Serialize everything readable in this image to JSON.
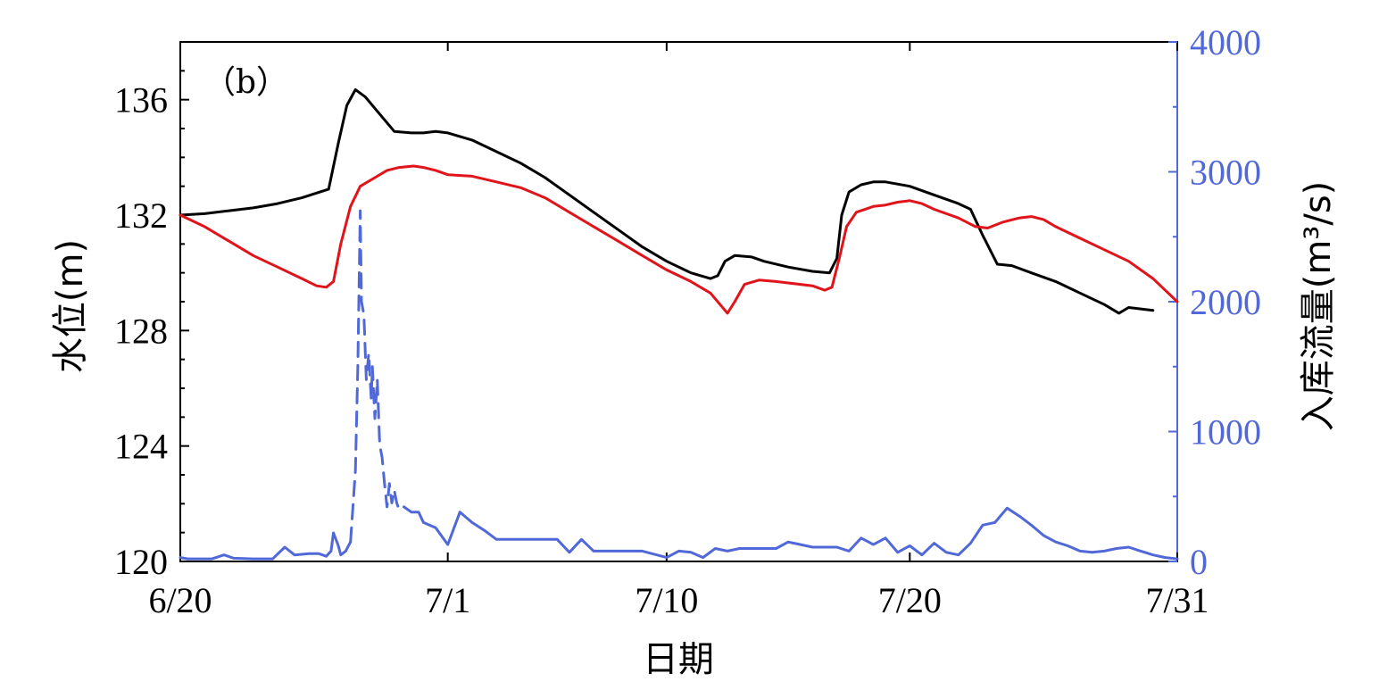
{
  "chart_data": {
    "type": "line",
    "panel_label": "（b）",
    "xlabel": "日期",
    "ylabel_left": "水位(m)",
    "ylabel_right": "入库流量(m³/s)",
    "x_range": [
      0,
      41
    ],
    "x_ticks": [
      {
        "x": 0,
        "label": "6/20"
      },
      {
        "x": 11,
        "label": "7/1"
      },
      {
        "x": 20,
        "label": "7/10"
      },
      {
        "x": 30,
        "label": "7/20"
      },
      {
        "x": 41,
        "label": "7/31"
      }
    ],
    "ylim_left": [
      120,
      138
    ],
    "yticks_left": [
      120,
      124,
      128,
      132,
      136
    ],
    "ylim_right": [
      0,
      4000
    ],
    "yticks_right": [
      0,
      1000,
      2000,
      3000,
      4000
    ],
    "colors": {
      "black": "#000000",
      "red": "#e0141b",
      "blue": "#5068d8"
    },
    "series": [
      {
        "axis": "left",
        "color": "#000000",
        "style": "solid",
        "points": [
          [
            0,
            132.0
          ],
          [
            1,
            132.05
          ],
          [
            2,
            132.15
          ],
          [
            3,
            132.25
          ],
          [
            4,
            132.4
          ],
          [
            5,
            132.6
          ],
          [
            6.1,
            132.9
          ],
          [
            6.5,
            134.5
          ],
          [
            6.85,
            135.8
          ],
          [
            7.2,
            136.35
          ],
          [
            7.6,
            136.1
          ],
          [
            8.2,
            135.5
          ],
          [
            8.8,
            134.9
          ],
          [
            9.5,
            134.85
          ],
          [
            10,
            134.85
          ],
          [
            10.5,
            134.9
          ],
          [
            11,
            134.85
          ],
          [
            12,
            134.6
          ],
          [
            13,
            134.2
          ],
          [
            14,
            133.8
          ],
          [
            15,
            133.3
          ],
          [
            16,
            132.7
          ],
          [
            17,
            132.1
          ],
          [
            18,
            131.5
          ],
          [
            19,
            130.9
          ],
          [
            20,
            130.4
          ],
          [
            21,
            130.0
          ],
          [
            21.8,
            129.8
          ],
          [
            22.1,
            129.9
          ],
          [
            22.4,
            130.4
          ],
          [
            22.8,
            130.6
          ],
          [
            23.5,
            130.55
          ],
          [
            24,
            130.4
          ],
          [
            25,
            130.2
          ],
          [
            26,
            130.05
          ],
          [
            26.7,
            130.0
          ],
          [
            27,
            130.5
          ],
          [
            27.2,
            132.0
          ],
          [
            27.5,
            132.8
          ],
          [
            28,
            133.05
          ],
          [
            28.5,
            133.15
          ],
          [
            29,
            133.15
          ],
          [
            30,
            133.0
          ],
          [
            31,
            132.7
          ],
          [
            32,
            132.4
          ],
          [
            32.5,
            132.2
          ],
          [
            33,
            131.3
          ],
          [
            33.6,
            130.3
          ],
          [
            34.2,
            130.25
          ],
          [
            35,
            130.0
          ],
          [
            36,
            129.7
          ],
          [
            37,
            129.3
          ],
          [
            38,
            128.9
          ],
          [
            38.6,
            128.6
          ],
          [
            39,
            128.8
          ],
          [
            39.5,
            128.75
          ],
          [
            40,
            128.7
          ]
        ]
      },
      {
        "axis": "left",
        "color": "#e0141b",
        "style": "solid",
        "points": [
          [
            0,
            132.0
          ],
          [
            1,
            131.6
          ],
          [
            2,
            131.1
          ],
          [
            3,
            130.6
          ],
          [
            4,
            130.2
          ],
          [
            5,
            129.8
          ],
          [
            5.6,
            129.55
          ],
          [
            6,
            129.5
          ],
          [
            6.3,
            129.7
          ],
          [
            6.6,
            131.0
          ],
          [
            7,
            132.3
          ],
          [
            7.4,
            133.0
          ],
          [
            8,
            133.3
          ],
          [
            8.5,
            133.55
          ],
          [
            9,
            133.65
          ],
          [
            9.6,
            133.7
          ],
          [
            10,
            133.65
          ],
          [
            10.5,
            133.55
          ],
          [
            11,
            133.4
          ],
          [
            12,
            133.35
          ],
          [
            13,
            133.15
          ],
          [
            14,
            132.95
          ],
          [
            15,
            132.6
          ],
          [
            16,
            132.1
          ],
          [
            17,
            131.6
          ],
          [
            18,
            131.1
          ],
          [
            19,
            130.6
          ],
          [
            20,
            130.1
          ],
          [
            21,
            129.7
          ],
          [
            21.8,
            129.3
          ],
          [
            22.2,
            128.9
          ],
          [
            22.5,
            128.6
          ],
          [
            22.8,
            129.0
          ],
          [
            23.2,
            129.6
          ],
          [
            23.8,
            129.75
          ],
          [
            24.5,
            129.7
          ],
          [
            25,
            129.65
          ],
          [
            26,
            129.55
          ],
          [
            26.5,
            129.4
          ],
          [
            26.8,
            129.5
          ],
          [
            27.1,
            130.5
          ],
          [
            27.4,
            131.6
          ],
          [
            27.8,
            132.1
          ],
          [
            28.5,
            132.3
          ],
          [
            29,
            132.35
          ],
          [
            29.5,
            132.45
          ],
          [
            30,
            132.5
          ],
          [
            30.5,
            132.4
          ],
          [
            31,
            132.2
          ],
          [
            32,
            131.9
          ],
          [
            32.7,
            131.6
          ],
          [
            33.2,
            131.55
          ],
          [
            33.8,
            131.75
          ],
          [
            34.5,
            131.9
          ],
          [
            35,
            131.95
          ],
          [
            35.5,
            131.85
          ],
          [
            36,
            131.6
          ],
          [
            37,
            131.2
          ],
          [
            38,
            130.8
          ],
          [
            39,
            130.4
          ],
          [
            40,
            129.8
          ],
          [
            40.5,
            129.4
          ],
          [
            41,
            129.0
          ]
        ]
      },
      {
        "axis": "right",
        "color": "#5068d8",
        "style": "solid",
        "points": [
          [
            0,
            30
          ],
          [
            0.3,
            20
          ],
          [
            1.3,
            20
          ],
          [
            1.8,
            50
          ],
          [
            2.2,
            25
          ],
          [
            3,
            20
          ],
          [
            3.8,
            20
          ],
          [
            4.3,
            110
          ],
          [
            4.7,
            50
          ],
          [
            5.3,
            60
          ],
          [
            5.7,
            60
          ],
          [
            6,
            40
          ],
          [
            6.2,
            80
          ],
          [
            6.3,
            220
          ],
          [
            6.5,
            120
          ],
          [
            6.6,
            50
          ],
          [
            6.8,
            80
          ],
          [
            7,
            150
          ]
        ]
      },
      {
        "axis": "right",
        "color": "#5068d8",
        "style": "dashed",
        "points": [
          [
            7,
            150
          ],
          [
            7.2,
            700
          ],
          [
            7.3,
            1500
          ],
          [
            7.4,
            2700
          ],
          [
            7.45,
            2000
          ],
          [
            7.55,
            1900
          ],
          [
            7.65,
            1400
          ],
          [
            7.75,
            1600
          ],
          [
            7.85,
            1250
          ],
          [
            7.9,
            1500
          ],
          [
            8.0,
            1100
          ],
          [
            8.1,
            1400
          ],
          [
            8.2,
            900
          ],
          [
            8.3,
            800
          ],
          [
            8.4,
            600
          ],
          [
            8.5,
            420
          ],
          [
            8.6,
            600
          ],
          [
            8.7,
            450
          ],
          [
            8.8,
            550
          ],
          [
            8.9,
            450
          ],
          [
            9.0,
            400
          ],
          [
            9.2,
            420
          ]
        ]
      },
      {
        "axis": "right",
        "color": "#5068d8",
        "style": "solid",
        "points": [
          [
            9.2,
            420
          ],
          [
            9.5,
            380
          ],
          [
            9.8,
            380
          ],
          [
            10,
            300
          ],
          [
            10.5,
            260
          ],
          [
            11,
            130
          ],
          [
            11.5,
            380
          ],
          [
            12,
            300
          ],
          [
            12.5,
            240
          ],
          [
            13,
            170
          ],
          [
            14,
            170
          ],
          [
            15,
            170
          ],
          [
            15.5,
            170
          ],
          [
            16,
            70
          ],
          [
            16.5,
            170
          ],
          [
            17,
            80
          ],
          [
            18,
            80
          ],
          [
            19,
            80
          ],
          [
            20,
            30
          ],
          [
            20.5,
            80
          ],
          [
            21,
            70
          ],
          [
            21.5,
            30
          ],
          [
            22,
            100
          ],
          [
            22.5,
            80
          ],
          [
            23,
            100
          ],
          [
            24,
            100
          ],
          [
            24.5,
            100
          ],
          [
            25,
            150
          ],
          [
            26,
            110
          ],
          [
            26.5,
            110
          ],
          [
            27,
            110
          ],
          [
            27.5,
            80
          ],
          [
            28,
            180
          ],
          [
            28.5,
            130
          ],
          [
            29,
            180
          ],
          [
            29.5,
            70
          ],
          [
            30,
            120
          ],
          [
            30.5,
            50
          ],
          [
            31,
            140
          ],
          [
            31.5,
            70
          ],
          [
            32,
            50
          ],
          [
            32.5,
            140
          ],
          [
            33,
            280
          ],
          [
            33.5,
            300
          ],
          [
            34,
            410
          ],
          [
            34.5,
            350
          ],
          [
            35,
            280
          ],
          [
            35.5,
            200
          ],
          [
            36,
            150
          ],
          [
            36.5,
            120
          ],
          [
            37,
            80
          ],
          [
            37.5,
            70
          ],
          [
            38,
            80
          ],
          [
            38.5,
            100
          ],
          [
            39,
            110
          ],
          [
            39.5,
            80
          ],
          [
            40,
            50
          ],
          [
            40.5,
            30
          ],
          [
            41,
            20
          ]
        ]
      }
    ]
  }
}
